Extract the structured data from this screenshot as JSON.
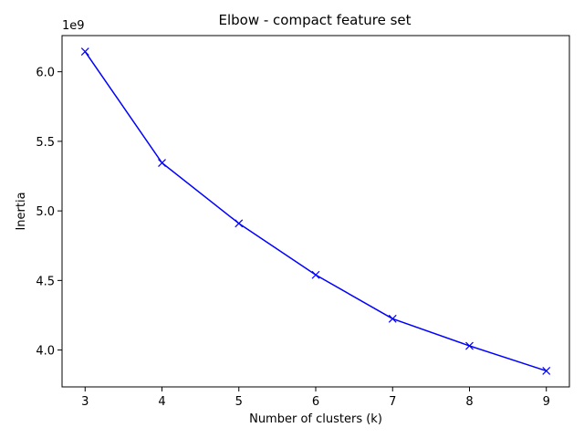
{
  "chart_data": {
    "type": "line",
    "title": "Elbow - compact feature set",
    "xlabel": "Number of clusters (k)",
    "ylabel": "Inertia",
    "y_offset_label": "1e9",
    "x": [
      3,
      4,
      5,
      6,
      7,
      8,
      9
    ],
    "series": [
      {
        "values": [
          6.145,
          5.345,
          4.91,
          4.54,
          4.225,
          4.03,
          3.85
        ],
        "color": "#0000ff",
        "marker": "x"
      }
    ],
    "xlim": [
      2.7,
      9.3
    ],
    "ylim": [
      3.735,
      6.26
    ],
    "xticks": [
      3,
      4,
      5,
      6,
      7,
      8,
      9
    ],
    "xtick_labels": [
      "3",
      "4",
      "5",
      "6",
      "7",
      "8",
      "9"
    ],
    "yticks": [
      4.0,
      4.5,
      5.0,
      5.5,
      6.0
    ],
    "ytick_labels": [
      "4.0",
      "4.5",
      "5.0",
      "5.5",
      "6.0"
    ],
    "grid": false
  }
}
